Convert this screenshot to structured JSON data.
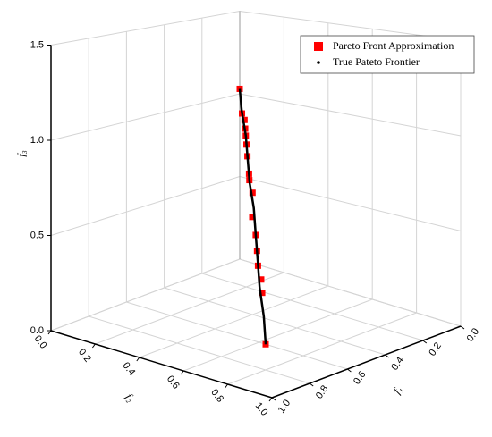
{
  "chart_data": {
    "type": "scatter3d",
    "xlabel": "f₁",
    "ylabel": "f₂",
    "zlabel": "f₃",
    "xlim": [
      0,
      1
    ],
    "ylim": [
      0,
      1
    ],
    "zlim": [
      0,
      1.5
    ],
    "xticks": [
      {
        "value": 0,
        "label": "0.0"
      },
      0.2,
      0.4,
      0.6,
      0.8,
      {
        "value": 1,
        "label": "1.0"
      }
    ],
    "yticks": [
      {
        "value": 0,
        "label": "0.0"
      },
      0.2,
      0.4,
      0.6,
      0.8,
      {
        "value": 1,
        "label": "1.0"
      }
    ],
    "zticks": [
      {
        "value": 0,
        "label": "0.0"
      },
      0.5,
      {
        "value": 1,
        "label": "1.0"
      },
      1.5
    ],
    "grid": true,
    "legend": "upper right",
    "series": [
      {
        "name": "Pareto Front Approximation",
        "color": "#ff0000",
        "marker": "square",
        "x": [
          0,
          0.07,
          0.08,
          0.1,
          0.12,
          0.14,
          0.17,
          0.22,
          0.23,
          0.26,
          0.32,
          0.36,
          0.4,
          0.43,
          0.46,
          0.49,
          0.6
        ],
        "y": [
          0,
          0.07,
          0.09,
          0.11,
          0.13,
          0.15,
          0.18,
          0.23,
          0.24,
          0.28,
          0.33,
          0.38,
          0.42,
          0.45,
          0.49,
          0.52,
          0.63
        ],
        "z": [
          1.03,
          0.92,
          0.89,
          0.85,
          0.82,
          0.78,
          0.73,
          0.66,
          0.63,
          0.58,
          0.48,
          0.41,
          0.35,
          0.29,
          0.24,
          0.19,
          0.0
        ]
      },
      {
        "name": "True Pateto Frontier",
        "color": "#000000",
        "marker": "dot",
        "x": [
          0,
          0.06,
          0.12,
          0.18,
          0.24,
          0.3,
          0.36,
          0.42,
          0.48,
          0.54,
          0.6
        ],
        "y": [
          0,
          0.06,
          0.13,
          0.19,
          0.25,
          0.32,
          0.38,
          0.44,
          0.5,
          0.57,
          0.63
        ],
        "z": [
          1.03,
          0.93,
          0.82,
          0.72,
          0.62,
          0.52,
          0.41,
          0.31,
          0.21,
          0.1,
          0.0
        ]
      }
    ]
  }
}
